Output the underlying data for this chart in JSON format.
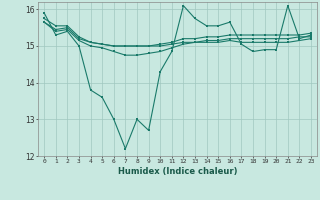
{
  "xlabel": "Humidex (Indice chaleur)",
  "ylabel": "",
  "bg_color": "#c8e8e0",
  "grid_color": "#a0c8c0",
  "line_color": "#1a7a6a",
  "xmin": -0.5,
  "xmax": 23.5,
  "ymin": 12,
  "ymax": 16.2,
  "yticks": [
    12,
    13,
    14,
    15,
    16
  ],
  "xticks": [
    0,
    1,
    2,
    3,
    4,
    5,
    6,
    7,
    8,
    9,
    10,
    11,
    12,
    13,
    14,
    15,
    16,
    17,
    18,
    19,
    20,
    21,
    22,
    23
  ],
  "line1": [
    15.9,
    15.3,
    15.4,
    15.0,
    13.8,
    13.6,
    13.0,
    12.2,
    13.0,
    12.7,
    14.3,
    14.85,
    16.1,
    15.75,
    15.55,
    15.55,
    15.65,
    15.05,
    14.85,
    14.9,
    14.9,
    16.1,
    15.2,
    15.3
  ],
  "line2": [
    15.75,
    15.55,
    15.55,
    15.25,
    15.1,
    15.05,
    15.0,
    15.0,
    15.0,
    15.0,
    15.05,
    15.1,
    15.2,
    15.2,
    15.25,
    15.25,
    15.3,
    15.3,
    15.3,
    15.3,
    15.3,
    15.3,
    15.3,
    15.35
  ],
  "line3": [
    15.65,
    15.45,
    15.5,
    15.2,
    15.1,
    15.05,
    15.0,
    15.0,
    15.0,
    15.0,
    15.0,
    15.05,
    15.1,
    15.1,
    15.15,
    15.15,
    15.2,
    15.2,
    15.2,
    15.2,
    15.2,
    15.2,
    15.25,
    15.25
  ],
  "line4": [
    15.65,
    15.4,
    15.45,
    15.15,
    15.0,
    14.95,
    14.85,
    14.75,
    14.75,
    14.8,
    14.85,
    14.95,
    15.05,
    15.1,
    15.1,
    15.1,
    15.15,
    15.1,
    15.1,
    15.1,
    15.1,
    15.1,
    15.15,
    15.2
  ]
}
